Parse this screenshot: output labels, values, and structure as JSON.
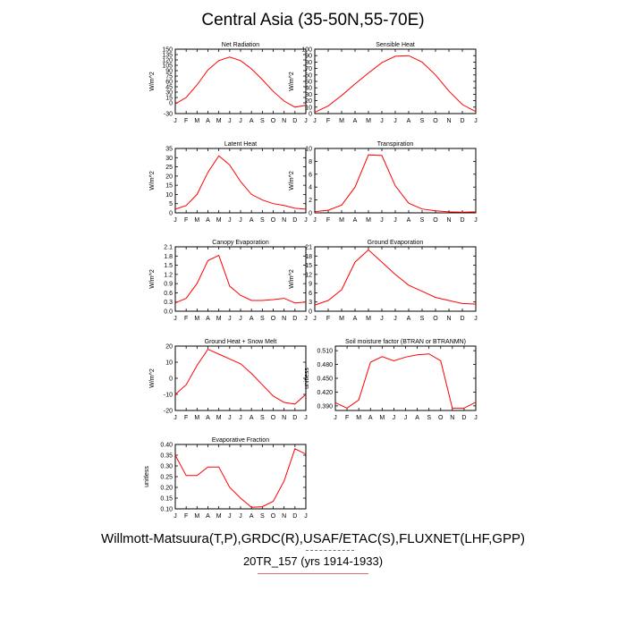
{
  "title": "Central Asia (35-50N,55-70E)",
  "footer": {
    "line1": "Willmott-Matsuura(T,P),GRDC(R),USAF/ETAC(S),FLUXNET(LHF,GPP)",
    "line2": "20TR_157 (yrs 1914-1933)"
  },
  "chart_data": [
    {
      "type": "line",
      "title": "Net Radiation",
      "ylabel": "W/m^2",
      "x": [
        "J",
        "F",
        "M",
        "A",
        "M",
        "J",
        "J",
        "A",
        "S",
        "O",
        "N",
        "D",
        "J"
      ],
      "values": [
        -3,
        15,
        50,
        92,
        118,
        128,
        118,
        95,
        65,
        32,
        5,
        -12,
        -7
      ],
      "ylim": [
        -30,
        150
      ],
      "yticks": [
        "-30",
        "0",
        "15",
        "30",
        "45",
        "60",
        "75",
        "90",
        "105",
        "120",
        "135",
        "150"
      ],
      "ytick_values": [
        -30,
        0,
        15,
        30,
        45,
        60,
        75,
        90,
        105,
        120,
        135,
        150
      ],
      "color": "#ff0000"
    },
    {
      "type": "line",
      "title": "Sensible Heat",
      "ylabel": "W/m^2",
      "x": [
        "J",
        "F",
        "M",
        "A",
        "M",
        "J",
        "J",
        "A",
        "S",
        "O",
        "N",
        "D",
        "J"
      ],
      "values": [
        2,
        12,
        28,
        46,
        63,
        79,
        89,
        90,
        80,
        60,
        35,
        14,
        3
      ],
      "ylim": [
        0,
        100
      ],
      "yticks": [
        "0",
        "10",
        "20",
        "30",
        "40",
        "50",
        "60",
        "70",
        "80",
        "90",
        "100"
      ],
      "ytick_values": [
        0,
        10,
        20,
        30,
        40,
        50,
        60,
        70,
        80,
        90,
        100
      ],
      "color": "#ff0000"
    },
    {
      "type": "line",
      "title": "Latent Heat",
      "ylabel": "W/m^2",
      "x": [
        "J",
        "F",
        "M",
        "A",
        "M",
        "J",
        "J",
        "A",
        "S",
        "O",
        "N",
        "D",
        "J"
      ],
      "values": [
        2,
        4,
        10,
        22,
        31,
        26,
        17,
        10,
        7,
        5,
        4,
        2.5,
        2
      ],
      "ylim": [
        0,
        35
      ],
      "yticks": [
        "0",
        "5",
        "10",
        "15",
        "20",
        "25",
        "30",
        "35"
      ],
      "ytick_values": [
        0,
        5,
        10,
        15,
        20,
        25,
        30,
        35
      ],
      "color": "#ff0000"
    },
    {
      "type": "line",
      "title": "Transpiration",
      "ylabel": "W/m^2",
      "x": [
        "J",
        "F",
        "M",
        "A",
        "M",
        "J",
        "J",
        "A",
        "S",
        "O",
        "N",
        "D",
        "J"
      ],
      "values": [
        0.2,
        0.4,
        1.2,
        4,
        9,
        8.9,
        4.2,
        1.5,
        0.6,
        0.3,
        0.15,
        0.1,
        0.15
      ],
      "ylim": [
        0,
        10
      ],
      "yticks": [
        "0",
        "2",
        "4",
        "6",
        "8",
        "10"
      ],
      "ytick_values": [
        0,
        2,
        4,
        6,
        8,
        10
      ],
      "color": "#ff0000"
    },
    {
      "type": "line",
      "title": "Canopy Evaporation",
      "ylabel": "W/m^2",
      "x": [
        "J",
        "F",
        "M",
        "A",
        "M",
        "J",
        "J",
        "A",
        "S",
        "O",
        "N",
        "D",
        "J"
      ],
      "values": [
        0.27,
        0.42,
        0.9,
        1.65,
        1.82,
        0.82,
        0.52,
        0.35,
        0.35,
        0.38,
        0.42,
        0.27,
        0.3
      ],
      "ylim": [
        0,
        2.1
      ],
      "yticks": [
        "0.0",
        "0.3",
        "0.6",
        "0.9",
        "1.2",
        "1.5",
        "1.8",
        "2.1"
      ],
      "ytick_values": [
        0,
        0.3,
        0.6,
        0.9,
        1.2,
        1.5,
        1.8,
        2.1
      ],
      "color": "#ff0000"
    },
    {
      "type": "line",
      "title": "Ground Evaporation",
      "ylabel": "W/m^2",
      "x": [
        "J",
        "F",
        "M",
        "A",
        "M",
        "J",
        "J",
        "A",
        "S",
        "O",
        "N",
        "D",
        "J"
      ],
      "values": [
        2,
        3.5,
        7,
        16,
        20,
        16,
        12,
        8.5,
        6.5,
        4.5,
        3.5,
        2.5,
        2.3
      ],
      "ylim": [
        0,
        21
      ],
      "yticks": [
        "0",
        "3",
        "6",
        "9",
        "12",
        "15",
        "18",
        "21"
      ],
      "ytick_values": [
        0,
        3,
        6,
        9,
        12,
        15,
        18,
        21
      ],
      "color": "#ff0000"
    },
    {
      "type": "line",
      "title": "Ground Heat + Snow Melt",
      "ylabel": "W/m^2",
      "x": [
        "J",
        "F",
        "M",
        "A",
        "M",
        "J",
        "J",
        "A",
        "S",
        "O",
        "N",
        "D",
        "J"
      ],
      "values": [
        -10,
        -4,
        8,
        18,
        15,
        12,
        9,
        3,
        -4,
        -11,
        -15,
        -16,
        -10
      ],
      "ylim": [
        -20,
        20
      ],
      "yticks": [
        "-20",
        "-10",
        "0",
        "10",
        "20"
      ],
      "ytick_values": [
        -20,
        -10,
        0,
        10,
        20
      ],
      "color": "#ff0000"
    },
    {
      "type": "line",
      "title": "Soil moisture factor (BTRAN or BTRANMN)",
      "ylabel": "unitless",
      "x": [
        "J",
        "F",
        "M",
        "A",
        "M",
        "J",
        "J",
        "A",
        "S",
        "O",
        "N",
        "D",
        "J"
      ],
      "values": [
        0.397,
        0.385,
        0.403,
        0.485,
        0.497,
        0.488,
        0.496,
        0.501,
        0.503,
        0.488,
        0.385,
        0.385,
        0.398
      ],
      "ylim": [
        0.38,
        0.52
      ],
      "yticks": [
        "0.390",
        "0.420",
        "0.450",
        "0.480",
        "0.510"
      ],
      "ytick_values": [
        0.39,
        0.42,
        0.45,
        0.48,
        0.51
      ],
      "color": "#ff0000"
    },
    {
      "type": "line",
      "title": "Evaporative Fraction",
      "ylabel": "unitless",
      "x": [
        "J",
        "F",
        "M",
        "A",
        "M",
        "J",
        "J",
        "A",
        "S",
        "O",
        "N",
        "D",
        "J"
      ],
      "values": [
        0.35,
        0.255,
        0.255,
        0.295,
        0.295,
        0.2,
        0.15,
        0.107,
        0.11,
        0.135,
        0.23,
        0.38,
        0.355
      ],
      "ylim": [
        0.1,
        0.4
      ],
      "yticks": [
        "0.10",
        "0.15",
        "0.20",
        "0.25",
        "0.30",
        "0.35",
        "0.40"
      ],
      "ytick_values": [
        0.1,
        0.15,
        0.2,
        0.25,
        0.3,
        0.35,
        0.4
      ],
      "color": "#ff0000"
    }
  ]
}
